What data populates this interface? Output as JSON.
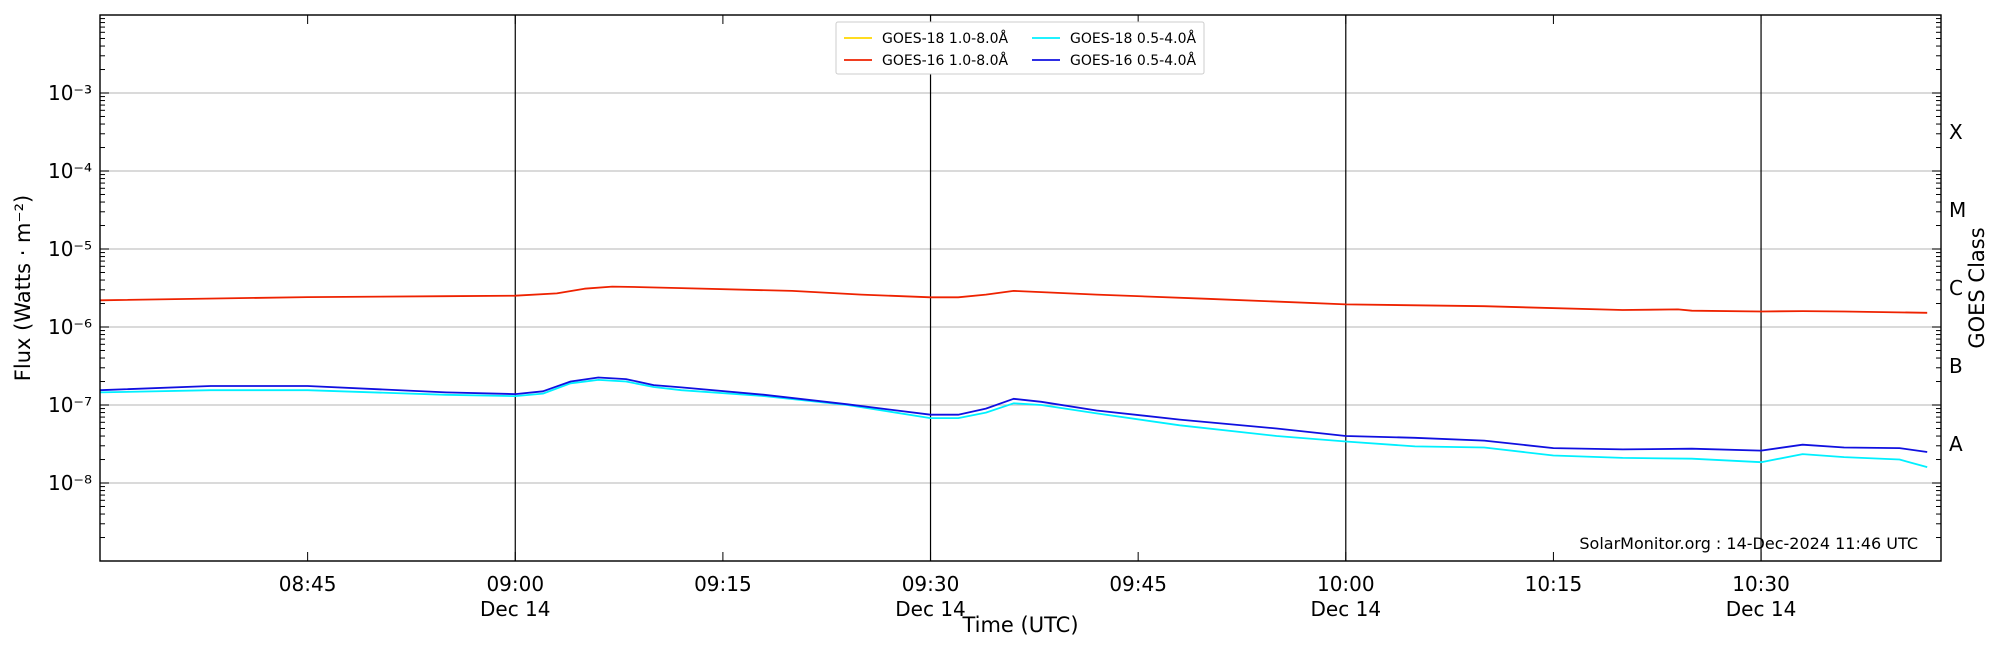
{
  "chart_data": {
    "type": "line",
    "xlabel": "Time (UTC)",
    "ylabel": "Flux (Watts · m⁻²)",
    "ylabel_right": "GOES Class",
    "y_scale": "log",
    "ylim": [
      1e-09,
      0.01
    ],
    "xlim": [
      "08:30",
      "10:43"
    ],
    "grid": "horizontal",
    "legend_position": "top-center",
    "y_ticks": [
      {
        "value": 1e-08,
        "label": "10⁻⁸"
      },
      {
        "value": 1e-07,
        "label": "10⁻⁷"
      },
      {
        "value": 1e-06,
        "label": "10⁻⁶"
      },
      {
        "value": 1e-05,
        "label": "10⁻⁵"
      },
      {
        "value": 0.0001,
        "label": "10⁻⁴"
      },
      {
        "value": 0.001,
        "label": "10⁻³"
      }
    ],
    "x_ticks": [
      {
        "time": "08:45",
        "label": "08:45",
        "sublabel": ""
      },
      {
        "time": "09:00",
        "label": "09:00",
        "sublabel": "Dec 14"
      },
      {
        "time": "09:15",
        "label": "09:15",
        "sublabel": ""
      },
      {
        "time": "09:30",
        "label": "09:30",
        "sublabel": "Dec 14"
      },
      {
        "time": "09:45",
        "label": "09:45",
        "sublabel": ""
      },
      {
        "time": "10:00",
        "label": "10:00",
        "sublabel": "Dec 14"
      },
      {
        "time": "10:15",
        "label": "10:15",
        "sublabel": ""
      },
      {
        "time": "10:30",
        "label": "10:30",
        "sublabel": "Dec 14"
      }
    ],
    "vertical_lines": [
      "09:00",
      "09:30",
      "10:00",
      "10:30"
    ],
    "goes_classes": [
      {
        "label": "X",
        "value": 0.000316
      },
      {
        "label": "M",
        "value": 3.16e-05
      },
      {
        "label": "C",
        "value": 3.16e-06
      },
      {
        "label": "B",
        "value": 3.16e-07
      },
      {
        "label": "A",
        "value": 3.16e-08
      }
    ],
    "credit": "SolarMonitor.org : 14-Dec-2024 11:46 UTC",
    "series": [
      {
        "name": "GOES-18 1.0-8.0Å",
        "color": "#ffd700",
        "points": []
      },
      {
        "name": "GOES-16 1.0-8.0Å",
        "color": "#ee2200",
        "points": [
          [
            "08:30",
            2.2e-06
          ],
          [
            "08:45",
            2.42e-06
          ],
          [
            "08:55",
            2.48e-06
          ],
          [
            "09:00",
            2.52e-06
          ],
          [
            "09:03",
            2.7e-06
          ],
          [
            "09:05",
            3.1e-06
          ],
          [
            "09:07",
            3.3e-06
          ],
          [
            "09:09",
            3.25e-06
          ],
          [
            "09:12",
            3.15e-06
          ],
          [
            "09:20",
            2.9e-06
          ],
          [
            "09:25",
            2.6e-06
          ],
          [
            "09:30",
            2.4e-06
          ],
          [
            "09:32",
            2.4e-06
          ],
          [
            "09:34",
            2.6e-06
          ],
          [
            "09:36",
            2.9e-06
          ],
          [
            "09:38",
            2.8e-06
          ],
          [
            "09:42",
            2.6e-06
          ],
          [
            "09:50",
            2.3e-06
          ],
          [
            "10:00",
            1.95e-06
          ],
          [
            "10:10",
            1.85e-06
          ],
          [
            "10:20",
            1.65e-06
          ],
          [
            "10:24",
            1.68e-06
          ],
          [
            "10:25",
            1.62e-06
          ],
          [
            "10:30",
            1.58e-06
          ],
          [
            "10:33",
            1.6e-06
          ],
          [
            "10:36",
            1.58e-06
          ],
          [
            "10:42",
            1.52e-06
          ]
        ]
      },
      {
        "name": "GOES-18 0.5-4.0Å",
        "color": "#00f0ff",
        "points": [
          [
            "08:30",
            1.45e-07
          ],
          [
            "08:38",
            1.55e-07
          ],
          [
            "08:45",
            1.55e-07
          ],
          [
            "08:55",
            1.35e-07
          ],
          [
            "09:00",
            1.3e-07
          ],
          [
            "09:02",
            1.4e-07
          ],
          [
            "09:04",
            1.9e-07
          ],
          [
            "09:06",
            2.1e-07
          ],
          [
            "09:08",
            2e-07
          ],
          [
            "09:10",
            1.7e-07
          ],
          [
            "09:12",
            1.55e-07
          ],
          [
            "09:18",
            1.3e-07
          ],
          [
            "09:24",
            1e-07
          ],
          [
            "09:30",
            6.8e-08
          ],
          [
            "09:32",
            6.8e-08
          ],
          [
            "09:34",
            8e-08
          ],
          [
            "09:36",
            1.05e-07
          ],
          [
            "09:38",
            1e-07
          ],
          [
            "09:42",
            7.8e-08
          ],
          [
            "09:48",
            5.5e-08
          ],
          [
            "09:55",
            4e-08
          ],
          [
            "10:00",
            3.4e-08
          ],
          [
            "10:05",
            2.95e-08
          ],
          [
            "10:10",
            2.85e-08
          ],
          [
            "10:15",
            2.25e-08
          ],
          [
            "10:20",
            2.1e-08
          ],
          [
            "10:25",
            2.05e-08
          ],
          [
            "10:30",
            1.85e-08
          ],
          [
            "10:33",
            2.35e-08
          ],
          [
            "10:36",
            2.15e-08
          ],
          [
            "10:40",
            2e-08
          ],
          [
            "10:42",
            1.6e-08
          ]
        ]
      },
      {
        "name": "GOES-16 0.5-4.0Å",
        "color": "#1010e0",
        "points": [
          [
            "08:30",
            1.55e-07
          ],
          [
            "08:38",
            1.75e-07
          ],
          [
            "08:45",
            1.75e-07
          ],
          [
            "08:55",
            1.45e-07
          ],
          [
            "09:00",
            1.38e-07
          ],
          [
            "09:02",
            1.5e-07
          ],
          [
            "09:04",
            2e-07
          ],
          [
            "09:06",
            2.25e-07
          ],
          [
            "09:08",
            2.15e-07
          ],
          [
            "09:10",
            1.8e-07
          ],
          [
            "09:12",
            1.68e-07
          ],
          [
            "09:18",
            1.35e-07
          ],
          [
            "09:24",
            1.02e-07
          ],
          [
            "09:30",
            7.5e-08
          ],
          [
            "09:32",
            7.5e-08
          ],
          [
            "09:34",
            9e-08
          ],
          [
            "09:36",
            1.2e-07
          ],
          [
            "09:38",
            1.1e-07
          ],
          [
            "09:42",
            8.5e-08
          ],
          [
            "09:48",
            6.5e-08
          ],
          [
            "09:55",
            5e-08
          ],
          [
            "10:00",
            4e-08
          ],
          [
            "10:05",
            3.8e-08
          ],
          [
            "10:10",
            3.5e-08
          ],
          [
            "10:15",
            2.8e-08
          ],
          [
            "10:20",
            2.7e-08
          ],
          [
            "10:25",
            2.75e-08
          ],
          [
            "10:30",
            2.6e-08
          ],
          [
            "10:33",
            3.1e-08
          ],
          [
            "10:36",
            2.85e-08
          ],
          [
            "10:40",
            2.8e-08
          ],
          [
            "10:42",
            2.5e-08
          ]
        ]
      }
    ]
  }
}
